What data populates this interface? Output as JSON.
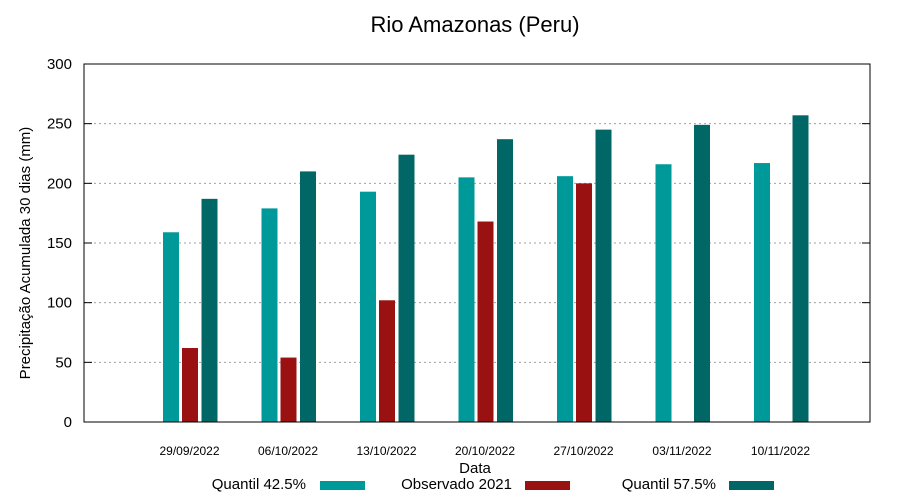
{
  "chart_data": {
    "type": "bar",
    "title": "Rio Amazonas (Peru)",
    "xlabel": "Data",
    "ylabel": "Precipitação Acumulada 30 dias (mm)",
    "ylim": [
      0,
      300
    ],
    "yticks": [
      0,
      50,
      100,
      150,
      200,
      250,
      300
    ],
    "grid": true,
    "legend_position": "bottom",
    "categories": [
      "29/09/2022",
      "06/10/2022",
      "13/10/2022",
      "20/10/2022",
      "27/10/2022",
      "03/11/2022",
      "10/11/2022"
    ],
    "series": [
      {
        "name": "Quantil 42.5%",
        "color": "#009999",
        "values": [
          159,
          179,
          193,
          205,
          206,
          216,
          217
        ]
      },
      {
        "name": "Observado 2021",
        "color": "#991111",
        "values": [
          62,
          54,
          102,
          168,
          200,
          null,
          null
        ]
      },
      {
        "name": "Quantil 57.5%",
        "color": "#006666",
        "values": [
          187,
          210,
          224,
          237,
          245,
          249,
          257
        ]
      }
    ]
  }
}
